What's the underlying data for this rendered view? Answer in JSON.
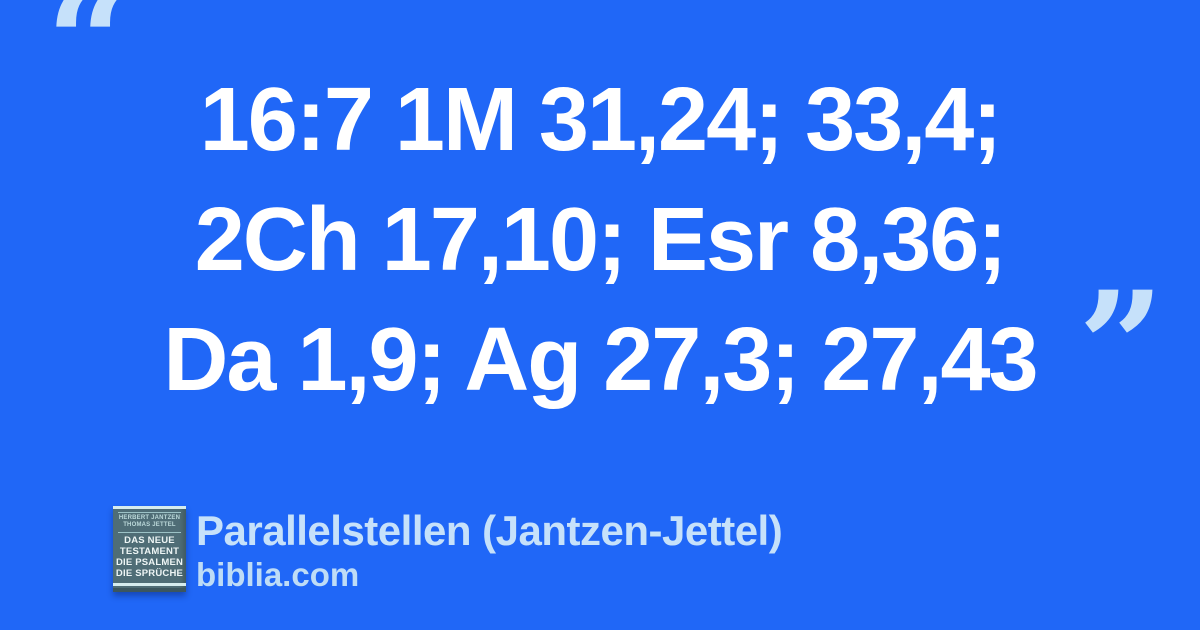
{
  "page": {
    "background_color": "#2067f7",
    "accent_light_blue": "#c6e1fa",
    "text_color": "#ffffff"
  },
  "quote": {
    "open_mark": "“",
    "close_mark": "”",
    "lines": [
      "16:7 1M 31,24; 33,4;",
      "2Ch 17,10; Esr 8,36;",
      "Da 1,9; Ag 27,3; 27,43"
    ]
  },
  "source": {
    "title": "Parallelstellen (Jantzen-Jettel)",
    "site": "biblia.com"
  },
  "book_cover": {
    "authors": [
      "HERBERT JANTZEN",
      "THOMAS JETTEL"
    ],
    "title_lines": [
      "DAS NEUE",
      "TESTAMENT",
      "DIE PSALMEN",
      "DIE SPRÜCHE"
    ],
    "body_color": "#4f6d76",
    "band_color": "#d6ecee"
  }
}
